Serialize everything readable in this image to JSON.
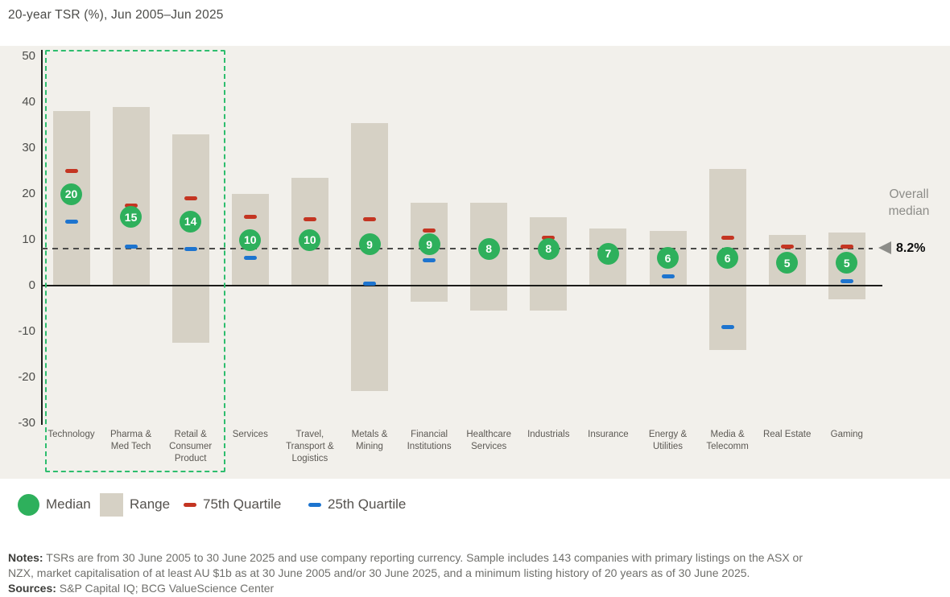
{
  "title": "20-year TSR (%), Jun 2005–Jun 2025",
  "colors": {
    "plot_background": "#f2f0eb",
    "range_bar": "#d6d1c5",
    "median_green": "#2eb05c",
    "q75_red": "#c43522",
    "q25_blue": "#1d74cf",
    "highlight_box_green": "#2ebd6e",
    "axis_black": "#1c1c1a",
    "overall_median_gray": "#8d8d89"
  },
  "overall_median": {
    "label_line1": "Overall",
    "label_line2": "median",
    "value_label": "8.2%",
    "value": 8.2
  },
  "chart_data": {
    "type": "range-bar",
    "title": "20-year TSR (%), Jun 2005–Jun 2025",
    "ylim": [
      -30,
      50
    ],
    "yticks": [
      50,
      40,
      30,
      20,
      10,
      0,
      -10,
      -20,
      -30
    ],
    "grid": false,
    "legend_position": "bottom",
    "overall_median": 8.2,
    "highlight_box_categories": [
      "Technology",
      "Pharma & Med Tech",
      "Retail & Consumer Product"
    ],
    "bars": [
      {
        "name": "Technology",
        "label_lines": [
          "Technology"
        ],
        "high": 38,
        "low": 0,
        "median": 20,
        "q75": 25,
        "q25": 14
      },
      {
        "name": "Pharma & Med Tech",
        "label_lines": [
          "Pharma &",
          "Med Tech"
        ],
        "high": 39,
        "low": 0,
        "median": 15,
        "q75": 17.5,
        "q25": 8.5
      },
      {
        "name": "Retail & Consumer Product",
        "label_lines": [
          "Retail &",
          "Consumer",
          "Product"
        ],
        "high": 33,
        "low": -12.5,
        "median": 14,
        "q75": 19,
        "q25": 8
      },
      {
        "name": "Services",
        "label_lines": [
          "Services"
        ],
        "high": 20,
        "low": 0,
        "median": 10,
        "q75": 15,
        "q25": 6
      },
      {
        "name": "Travel, Transport & Logistics",
        "label_lines": [
          "Travel,",
          "Transport &",
          "Logistics"
        ],
        "high": 23.5,
        "low": 0,
        "median": 10,
        "q75": 14.5,
        "q25": null
      },
      {
        "name": "Metals & Mining",
        "label_lines": [
          "Metals &",
          "Mining"
        ],
        "high": 35.5,
        "low": -23,
        "median": 9,
        "q75": 14.5,
        "q25": 0.5
      },
      {
        "name": "Financial Institutions",
        "label_lines": [
          "Financial",
          "Institutions"
        ],
        "high": 18,
        "low": -3.5,
        "median": 9,
        "q75": 12,
        "q25": 5.5
      },
      {
        "name": "Healthcare Services",
        "label_lines": [
          "Healthcare",
          "Services"
        ],
        "high": 18,
        "low": -5.5,
        "median": 8,
        "q75": null,
        "q25": null
      },
      {
        "name": "Industrials",
        "label_lines": [
          "Industrials"
        ],
        "high": 15,
        "low": -5.5,
        "median": 8,
        "q75": 10.5,
        "q25": null
      },
      {
        "name": "Insurance",
        "label_lines": [
          "Insurance"
        ],
        "high": 12.5,
        "low": 0,
        "median": 7,
        "q75": null,
        "q25": null
      },
      {
        "name": "Energy & Utilities",
        "label_lines": [
          "Energy &",
          "Utilities"
        ],
        "high": 12,
        "low": 0,
        "median": 6,
        "q75": null,
        "q25": 2
      },
      {
        "name": "Media & Telecomm",
        "label_lines": [
          "Media &",
          "Telecomm"
        ],
        "high": 25.5,
        "low": -14,
        "median": 6,
        "q75": 10.5,
        "q25": -9
      },
      {
        "name": "Real Estate",
        "label_lines": [
          "Real Estate"
        ],
        "high": 11,
        "low": 0,
        "median": 5,
        "q75": 8.5,
        "q25": null
      },
      {
        "name": "Gaming",
        "label_lines": [
          "Gaming"
        ],
        "high": 11.5,
        "low": -3,
        "median": 5,
        "q75": 8.5,
        "q25": 1
      }
    ]
  },
  "legend": {
    "items": [
      {
        "label": "Median",
        "swatch": "green-circle"
      },
      {
        "label": "Range",
        "swatch": "beige-square"
      },
      {
        "label": "75th Quartile",
        "swatch": "red-dash"
      },
      {
        "label": "25th Quartile",
        "swatch": "blue-dash"
      }
    ]
  },
  "notes": {
    "notes_label": "Notes:",
    "notes_line1_rest": " TSRs are from 30 June 2005 to 30 June 2025 and use company reporting currency. Sample includes 143 companies with primary listings on the ASX or",
    "notes_line2": "NZX, market capitalisation of at least AU $1b as at 30 June 2005 and/or 30 June 2025, and a minimum listing history of 20 years as of 30 June 2025.",
    "sources_label": "Sources:",
    "sources_rest": " S&P Capital IQ; BCG ValueScience Center"
  }
}
